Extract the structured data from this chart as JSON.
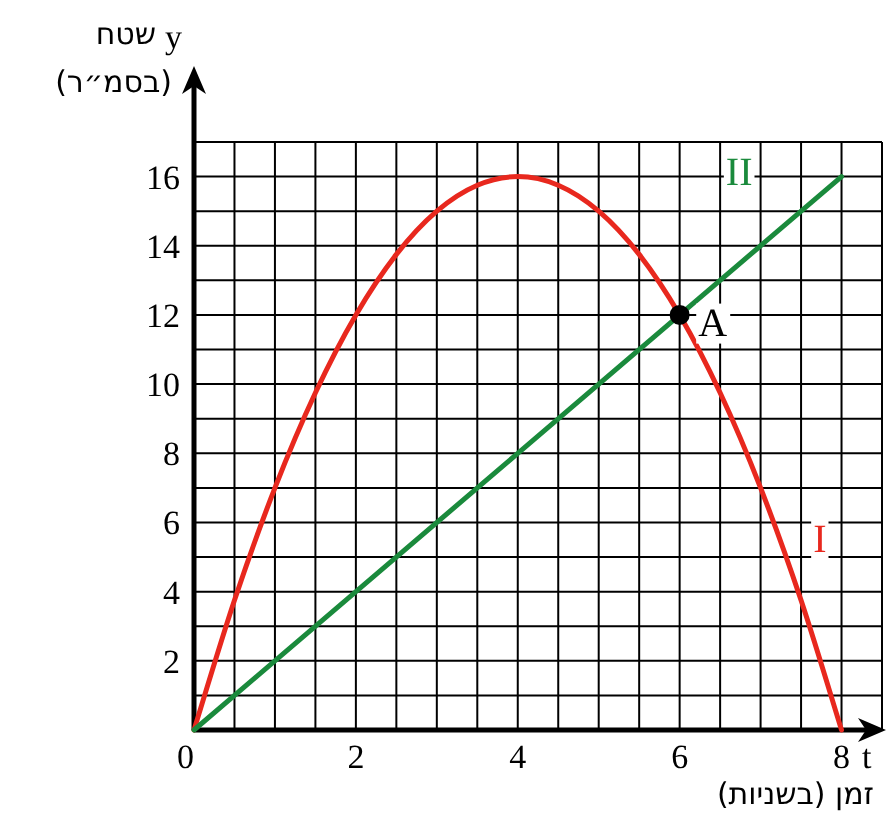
{
  "chart_data": {
    "type": "line",
    "xlabel": "זמן (בשניות)",
    "ylabel": "שטח\n(בסמ״ר)",
    "annotations": [
      "t",
      "y"
    ],
    "xlim": [
      0,
      8.5
    ],
    "ylim": [
      0,
      17
    ],
    "xticks": [
      0,
      {
        "value": 0.5,
        "label": null
      },
      {
        "value": 1,
        "label": null
      },
      {
        "value": 1.5,
        "label": null
      },
      2,
      {
        "value": 2.5,
        "label": null
      },
      {
        "value": 3,
        "label": null
      },
      {
        "value": 3.5,
        "label": null
      },
      4,
      {
        "value": 4.5,
        "label": null
      },
      {
        "value": 5,
        "label": null
      },
      {
        "value": 5.5,
        "label": null
      },
      6,
      {
        "value": 6.5,
        "label": null
      },
      {
        "value": 7,
        "label": null
      },
      {
        "value": 7.5,
        "label": null
      },
      8,
      {
        "value": 8.5,
        "label": null
      }
    ],
    "yticks": [
      {
        "value": 1,
        "label": null
      },
      2,
      {
        "value": 3,
        "label": null
      },
      4,
      {
        "value": 5,
        "label": null
      },
      6,
      {
        "value": 7,
        "label": null
      },
      8,
      {
        "value": 9,
        "label": null
      },
      10,
      {
        "value": 11,
        "label": null
      },
      12,
      {
        "value": 13,
        "label": null
      },
      14,
      {
        "value": 15,
        "label": null
      },
      16,
      {
        "value": 17,
        "label": null
      }
    ],
    "grid": true,
    "series": [
      {
        "name": "I",
        "color": "#e8281e",
        "x": [
          0,
          0.5,
          1,
          1.5,
          2,
          2.5,
          3,
          3.5,
          4,
          4.5,
          5,
          5.5,
          6,
          6.5,
          7,
          7.5,
          8
        ],
        "values": [
          0,
          3.75,
          7,
          9.75,
          12,
          13.75,
          15,
          15.75,
          16,
          15.75,
          15,
          13.75,
          12,
          9.75,
          7,
          3.75,
          0
        ]
      },
      {
        "name": "II",
        "color": "#1a8a3c",
        "x": [
          0,
          8
        ],
        "values": [
          0,
          16
        ]
      },
      {
        "name": "A",
        "type": "scatter",
        "color": "#000000",
        "marker": "circle",
        "x": [
          6
        ],
        "values": [
          12
        ]
      }
    ]
  }
}
